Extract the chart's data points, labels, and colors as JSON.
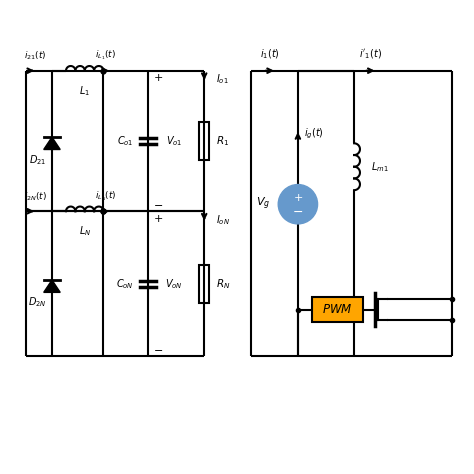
{
  "bg_color": "#ffffff",
  "line_color": "#000000",
  "line_width": 1.5,
  "pwm_color": "#FFA500",
  "source_color": "#6699CC",
  "text_color": "#000000"
}
